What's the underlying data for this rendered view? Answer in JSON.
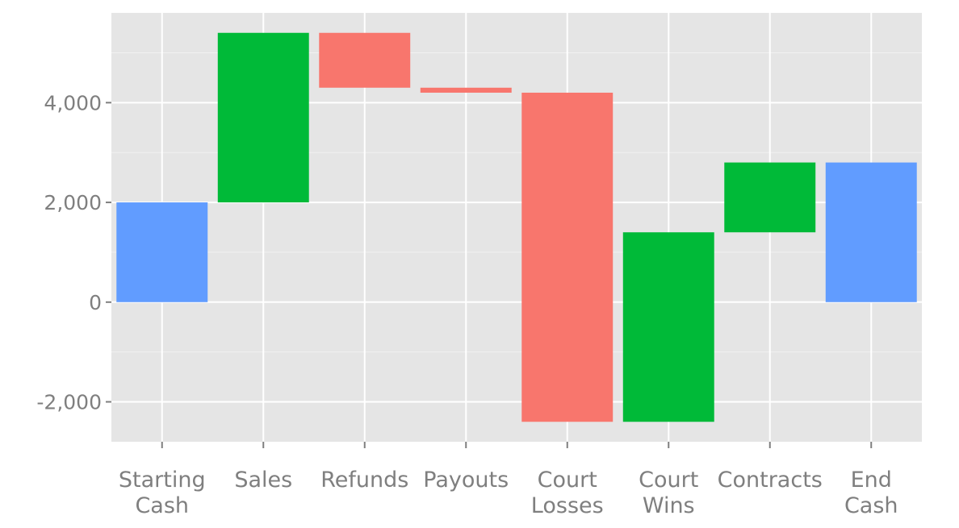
{
  "chart_data": {
    "type": "waterfall",
    "title": "",
    "xlabel": "",
    "ylabel": "",
    "ylim": [
      -2800,
      5800
    ],
    "y_ticks": [
      -2000,
      0,
      2000,
      4000
    ],
    "y_tick_labels": [
      "-2,000",
      "0",
      "2,000",
      "4,000"
    ],
    "grid": true,
    "legend": "none",
    "categories": [
      [
        "Starting",
        "Cash"
      ],
      [
        "Sales"
      ],
      [
        "Refunds"
      ],
      [
        "Payouts"
      ],
      [
        "Court",
        "Losses"
      ],
      [
        "Court",
        "Wins"
      ],
      [
        "Contracts"
      ],
      [
        "End",
        "Cash"
      ]
    ],
    "bars": [
      {
        "start": 0,
        "end": 2000,
        "kind": "total"
      },
      {
        "start": 2000,
        "end": 5400,
        "kind": "increase"
      },
      {
        "start": 5400,
        "end": 4300,
        "kind": "decrease"
      },
      {
        "start": 4300,
        "end": 4200,
        "kind": "decrease"
      },
      {
        "start": 4200,
        "end": -2400,
        "kind": "decrease"
      },
      {
        "start": -2400,
        "end": 1400,
        "kind": "increase"
      },
      {
        "start": 1400,
        "end": 2800,
        "kind": "increase"
      },
      {
        "start": 0,
        "end": 2800,
        "kind": "total"
      }
    ],
    "colors": {
      "total": "#619cff",
      "increase": "#00ba38",
      "decrease": "#f8766d",
      "panel": "#e5e5e5",
      "grid_major": "#ffffff",
      "grid_minor": "#f2f2f2",
      "text": "#7f7f7f"
    }
  }
}
